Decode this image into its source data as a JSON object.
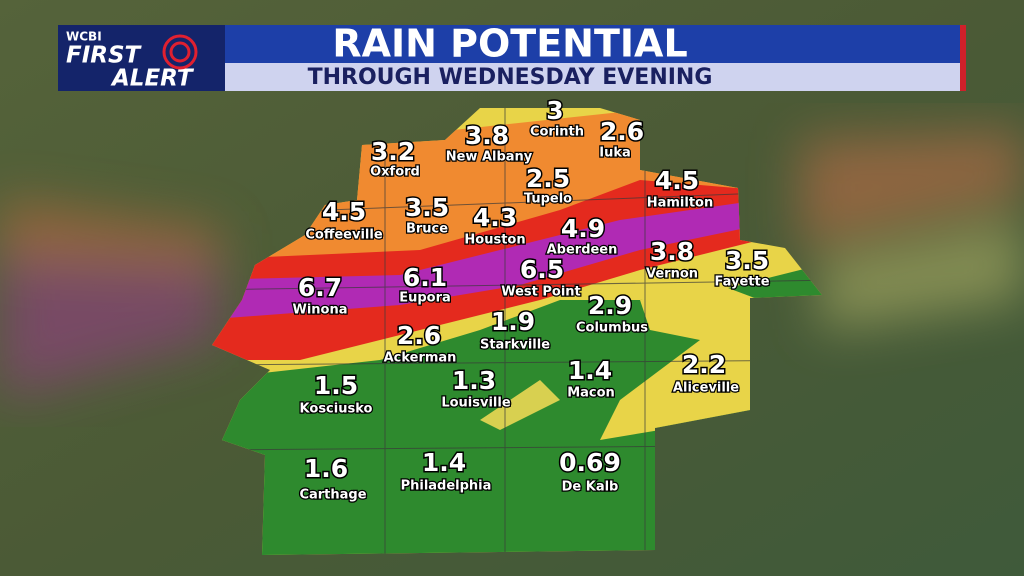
{
  "header": {
    "logo": {
      "station": "WCBI",
      "line1": "FIRST",
      "line2": "ALERT"
    },
    "title": "RAIN POTENTIAL",
    "subtitle": "THROUGH WEDNESDAY EVENING"
  },
  "cities": [
    {
      "name": "Corinth",
      "value": 3
    },
    {
      "name": "Iuka",
      "value": 2.6
    },
    {
      "name": "New Albany",
      "value": 3.8
    },
    {
      "name": "Oxford",
      "value": 3.2
    },
    {
      "name": "Tupelo",
      "value": 2.5
    },
    {
      "name": "Hamilton",
      "value": 4.5
    },
    {
      "name": "Coffeeville",
      "value": 4.5
    },
    {
      "name": "Bruce",
      "value": 3.5
    },
    {
      "name": "Houston",
      "value": 4.3
    },
    {
      "name": "Aberdeen",
      "value": 4.9
    },
    {
      "name": "Vernon",
      "value": 3.8
    },
    {
      "name": "Fayette",
      "value": 3.5
    },
    {
      "name": "Winona",
      "value": 6.7
    },
    {
      "name": "Eupora",
      "value": 6.1
    },
    {
      "name": "West Point",
      "value": 6.5
    },
    {
      "name": "Columbus",
      "value": 2.9
    },
    {
      "name": "Ackerman",
      "value": 2.6
    },
    {
      "name": "Starkville",
      "value": 1.9
    },
    {
      "name": "Aliceville",
      "value": 2.2
    },
    {
      "name": "Kosciusko",
      "value": 1.5
    },
    {
      "name": "Louisville",
      "value": 1.3
    },
    {
      "name": "Macon",
      "value": 1.4
    },
    {
      "name": "Carthage",
      "value": 1.6
    },
    {
      "name": "Philadelphia",
      "value": 1.4
    },
    {
      "name": "De Kalb",
      "value": 0.69
    }
  ]
}
